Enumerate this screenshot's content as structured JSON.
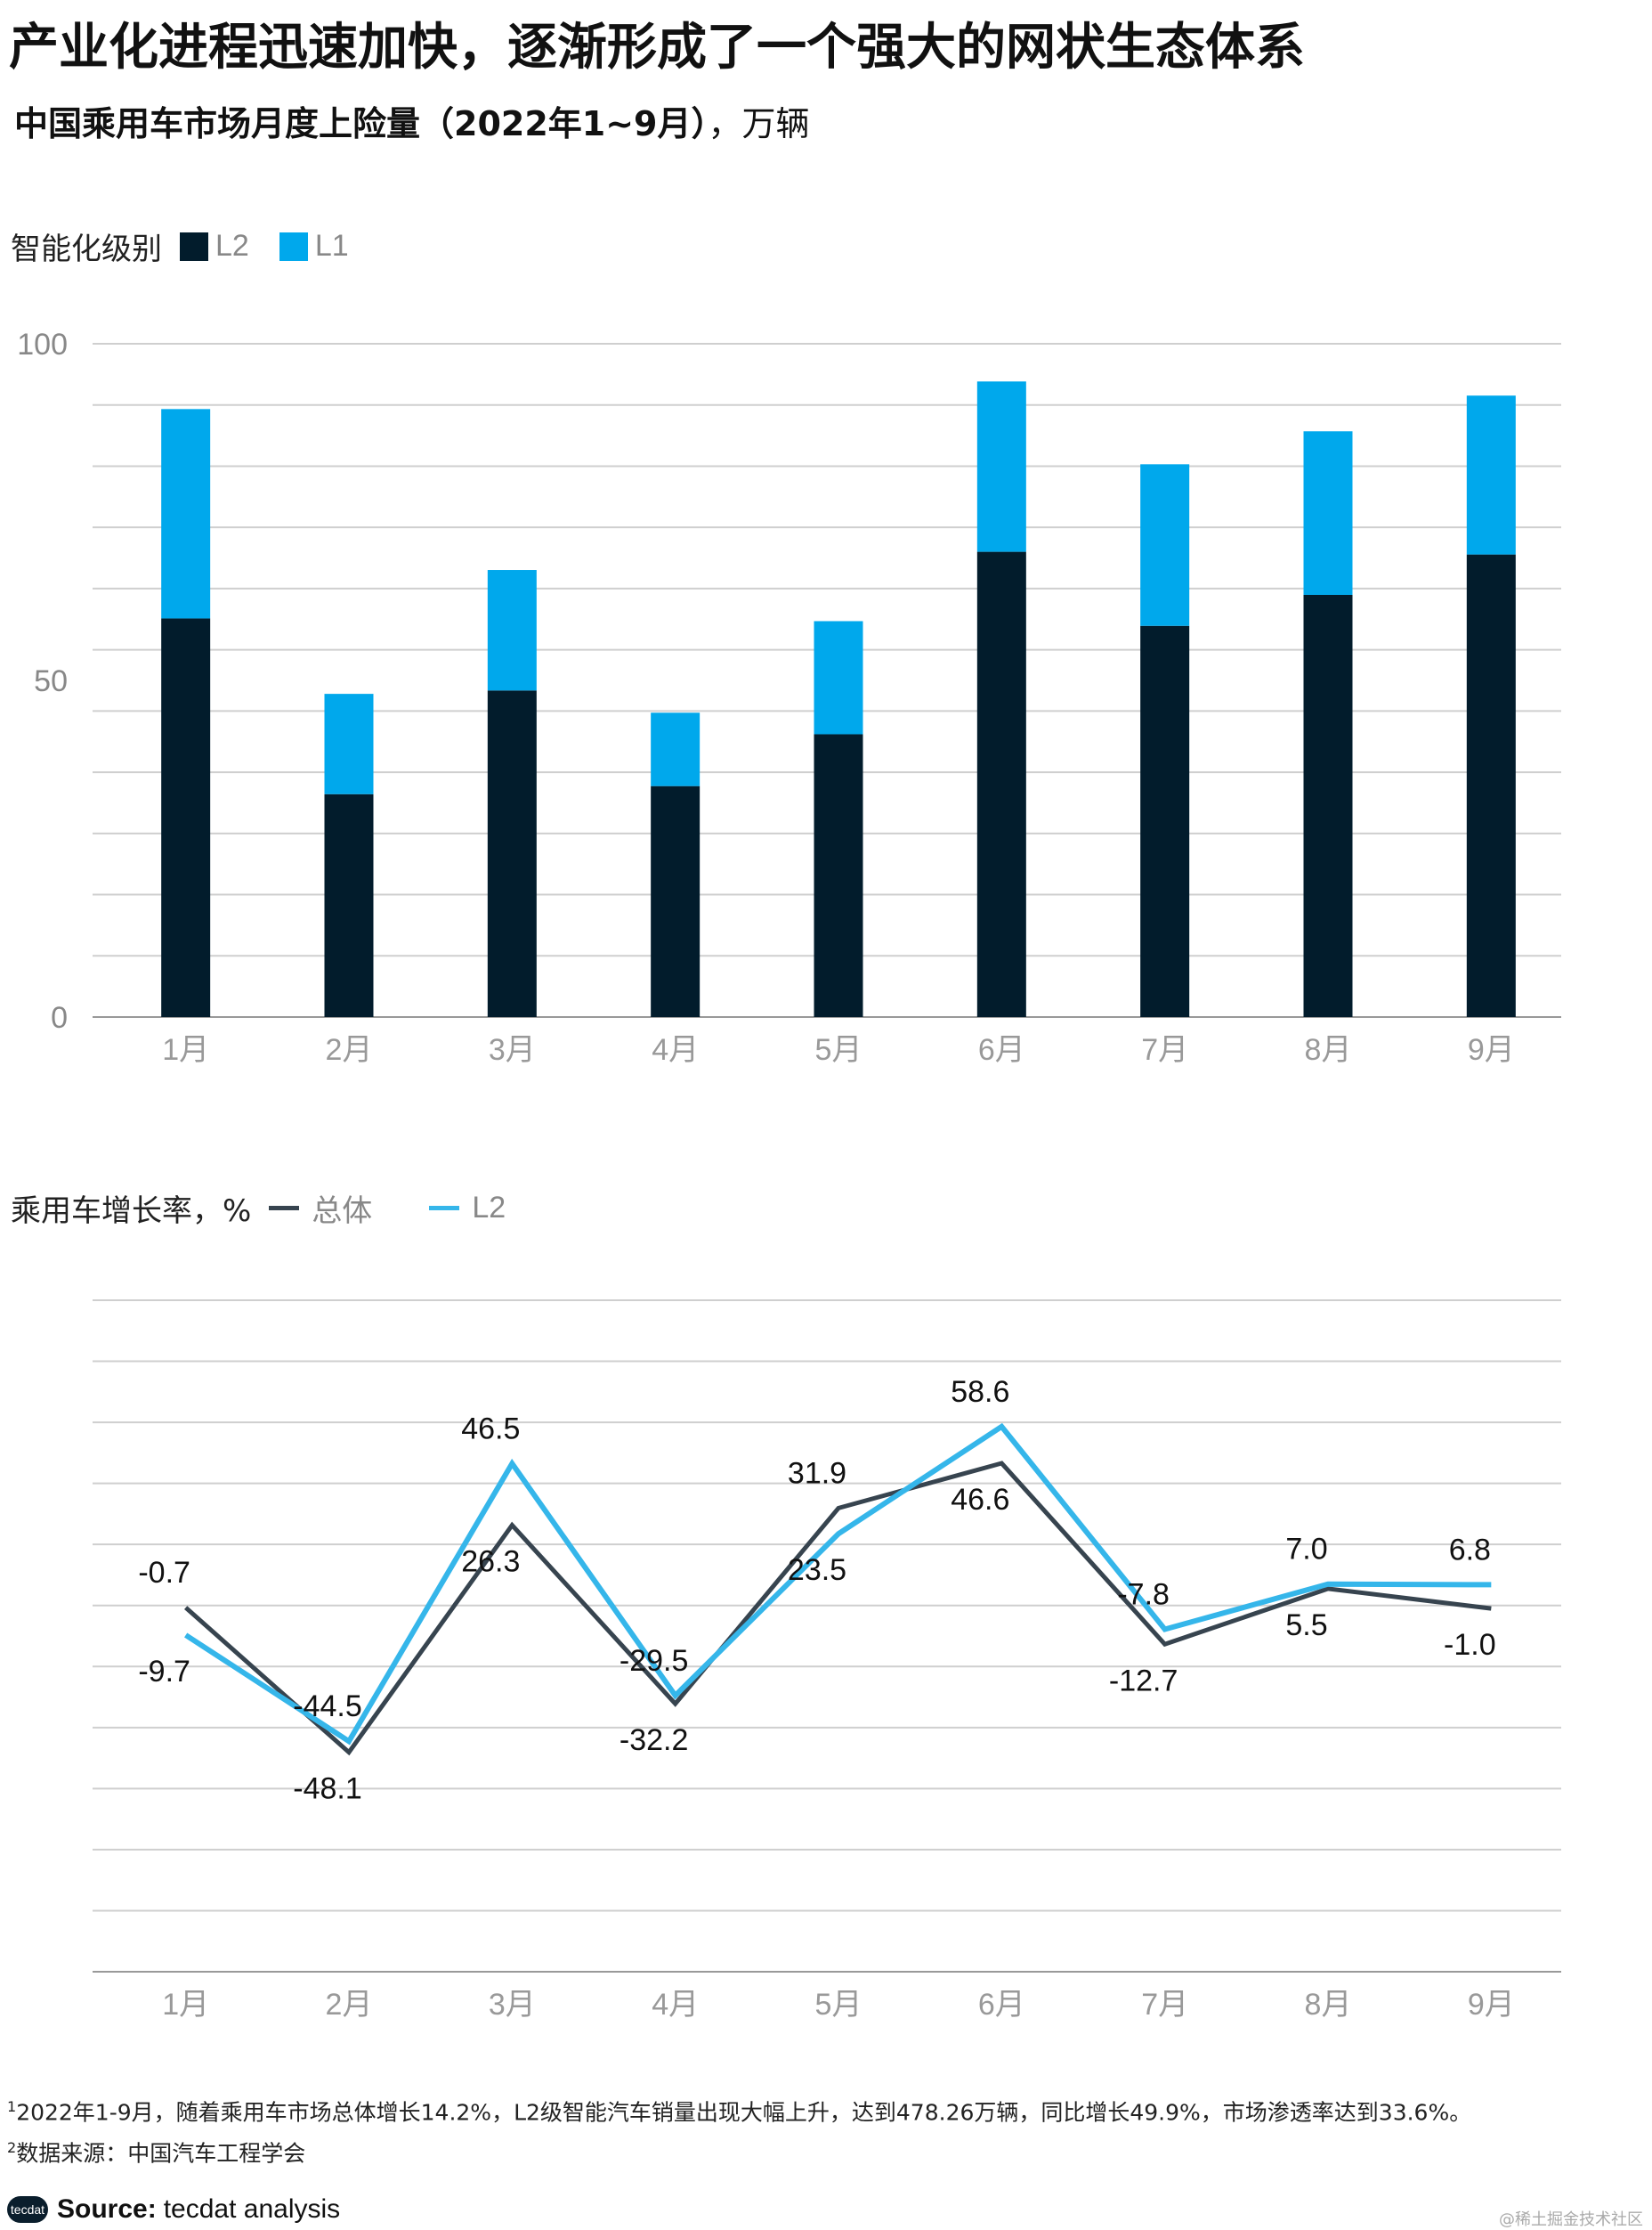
{
  "title": "产业化进程迅速加快，逐渐形成了一个强大的网状生态体系",
  "subtitle": {
    "main": "中国乘用车市场月度上险量（2022年1~9月）",
    "unit": "，万辆"
  },
  "colors": {
    "l2_dark": "#021c2c",
    "l1_light": "#00a8ec",
    "overall_line": "#37444f",
    "l2_line": "#35b6ea",
    "grid": "#cfcfcf"
  },
  "chart_data": [
    {
      "type": "bar",
      "stacked": true,
      "legend_title": "智能化级别",
      "categories": [
        "1月",
        "2月",
        "3月",
        "4月",
        "5月",
        "6月",
        "7月",
        "8月",
        "9月"
      ],
      "series": [
        {
          "name": "L2",
          "values": [
            59.2,
            33.1,
            48.5,
            34.3,
            42.0,
            69.1,
            58.1,
            62.7,
            68.7
          ]
        },
        {
          "name": "L1",
          "values": [
            31.1,
            14.9,
            17.9,
            10.9,
            16.8,
            25.3,
            24.0,
            24.3,
            23.6
          ]
        }
      ],
      "ylim": [
        0,
        100
      ],
      "yticks": [
        "0",
        "50",
        "100"
      ],
      "grid": true
    },
    {
      "type": "line",
      "legend_title": "乘用车增长率，%",
      "categories": [
        "1月",
        "2月",
        "3月",
        "4月",
        "5月",
        "6月",
        "7月",
        "8月",
        "9月"
      ],
      "series": [
        {
          "name": "总体",
          "values": [
            -0.7,
            -48.1,
            26.3,
            -32.2,
            31.9,
            46.6,
            -12.7,
            5.5,
            -1.0
          ],
          "labels": [
            "-0.7",
            "-48.1",
            "26.3",
            "-32.2",
            "31.9",
            "46.6",
            "-12.7",
            "5.5",
            "-1.0"
          ]
        },
        {
          "name": "L2",
          "values": [
            -9.7,
            -44.5,
            46.5,
            -29.5,
            23.5,
            58.6,
            -7.8,
            7.0,
            6.8
          ],
          "labels": [
            "-9.7",
            "-44.5",
            "46.5",
            "-29.5",
            "23.5",
            "58.6",
            "-7.8",
            "7.0",
            "6.8"
          ]
        }
      ],
      "ylim": [
        -120,
        100
      ],
      "grid": true
    }
  ],
  "notes": [
    {
      "sup": "1",
      "text": "2022年1-9月，随着乘用车市场总体增长14.2%，L2级智能汽车销量出现大幅上升，达到478.26万辆，同比增长49.9%，市场渗透率达到33.6%。"
    },
    {
      "sup": "2",
      "text": "数据来源：中国汽车工程学会"
    }
  ],
  "footer": {
    "logo": "tecdat",
    "source_label": "Source:",
    "source_value": "tecdat analysis"
  },
  "watermark": "@稀土掘金技术社区"
}
